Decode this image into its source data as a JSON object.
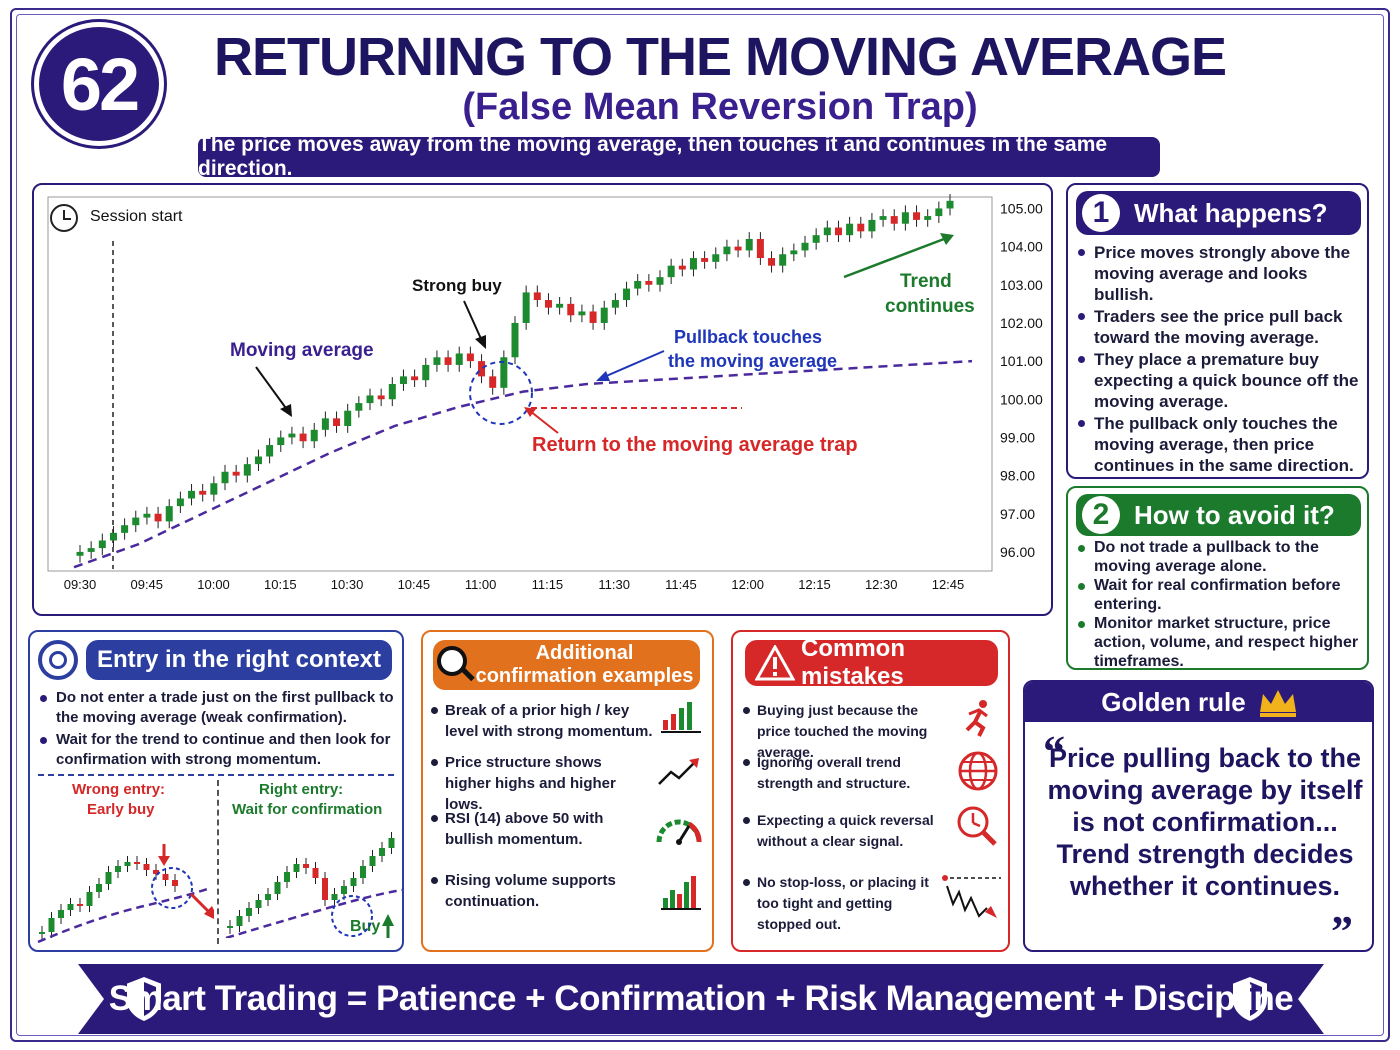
{
  "header": {
    "badge_number": "62",
    "title": "RETURNING TO THE MOVING AVERAGE",
    "subtitle": "(False Mean Reversion Trap)",
    "ribbon": "The price moves away from the moving average, then touches it and continues in the same direction."
  },
  "chart_data": {
    "type": "candlestick",
    "legend_label": "Session start",
    "x_ticks": [
      "09:30",
      "09:45",
      "10:00",
      "10:15",
      "10:30",
      "10:45",
      "11:00",
      "11:15",
      "11:30",
      "11:45",
      "12:00",
      "12:15",
      "12:30",
      "12:45"
    ],
    "y_ticks": [
      "105.00",
      "104.00",
      "103.00",
      "102.00",
      "101.00",
      "100.00",
      "99.00",
      "98.00",
      "97.00",
      "96.00"
    ],
    "ylim": [
      95.5,
      105.3
    ],
    "close_path": [
      96.0,
      96.1,
      96.3,
      96.5,
      96.7,
      96.9,
      97.0,
      96.8,
      97.2,
      97.4,
      97.6,
      97.5,
      97.8,
      98.1,
      98.0,
      98.3,
      98.5,
      98.8,
      99.0,
      99.1,
      98.9,
      99.2,
      99.5,
      99.3,
      99.7,
      99.9,
      100.1,
      100.0,
      100.4,
      100.6,
      100.5,
      100.9,
      101.1,
      100.9,
      101.2,
      101.0,
      100.6,
      100.3,
      101.1,
      102.0,
      102.8,
      102.6,
      102.4,
      102.5,
      102.2,
      102.3,
      102.0,
      102.4,
      102.6,
      102.9,
      103.1,
      103.0,
      103.2,
      103.5,
      103.4,
      103.7,
      103.6,
      103.8,
      104.0,
      103.9,
      104.2,
      103.7,
      103.5,
      103.8,
      103.9,
      104.1,
      104.3,
      104.5,
      104.3,
      104.6,
      104.4,
      104.7,
      104.8,
      104.6,
      104.9,
      104.7,
      104.8,
      105.0,
      105.2
    ],
    "moving_average": [
      95.6,
      96.2,
      97.0,
      97.8,
      98.6,
      99.3,
      99.8,
      100.2,
      100.4,
      100.5,
      100.6,
      100.7,
      100.8,
      100.9,
      101.0
    ],
    "annotations": {
      "session_start": "Session start",
      "moving_average": "Moving average",
      "strong_buy": "Strong buy",
      "pullback_1": "Pullback touches",
      "pullback_2": "the moving average",
      "trap": "Return to the moving average trap",
      "trend_1": "Trend",
      "trend_2": "continues"
    },
    "colors": {
      "up": "#1c8a2e",
      "down": "#d62828",
      "ma": "#4b2a9e"
    }
  },
  "what_happens": {
    "number": "1",
    "title": "What happens?",
    "items": [
      "Price moves strongly above the moving average and looks bullish.",
      "Traders see the price pull back toward the moving average.",
      "They place a premature buy expecting a quick bounce off the moving average.",
      "The pullback only touches the moving average, then price continues in the same direction."
    ]
  },
  "how_to_avoid": {
    "number": "2",
    "title": "How to avoid it?",
    "items": [
      "Do not trade a pullback to the moving average alone.",
      "Wait for real confirmation before entering.",
      "Monitor market structure, price action, volume, and respect higher timeframes."
    ]
  },
  "entry_context": {
    "title": "Entry in the right context",
    "items": [
      "Do not enter a trade just on the first pullback to the moving average (weak confirmation).",
      "Wait for the trend to continue and then look for confirmation with strong momentum."
    ],
    "wrong_label_1": "Wrong entry:",
    "wrong_label_2": "Early buy",
    "right_label_1": "Right entry:",
    "right_label_2": "Wait for confirmation",
    "buy_label": "Buy"
  },
  "confirmation": {
    "title_1": "Additional",
    "title_2": "confirmation examples",
    "items": [
      "Break of a prior high / key level with strong momentum.",
      "Price structure shows higher highs and higher lows.",
      "RSI (14) above 50 with bullish momentum.",
      "Rising volume supports continuation."
    ],
    "icons": [
      "bar-chart-icon",
      "trend-up-icon",
      "gauge-icon",
      "volume-bars-icon"
    ]
  },
  "mistakes": {
    "title": "Common mistakes",
    "items": [
      "Buying just because the price touched the moving average.",
      "Ignoring overall trend strength and structure.",
      "Expecting a quick reversal without a clear signal.",
      "No stop-loss, or placing it too tight and getting stopped out."
    ],
    "icons": [
      "running-person-icon",
      "globe-icon",
      "clock-search-icon",
      "stop-loss-chart-icon"
    ]
  },
  "golden_rule": {
    "title": "Golden rule",
    "quote": "Price pulling back to the moving average by itself is not confirmation... Trend strength decides whether it continues."
  },
  "footer": {
    "text": "Smart Trading = Patience + Confirmation + Risk Management + Discipline"
  }
}
